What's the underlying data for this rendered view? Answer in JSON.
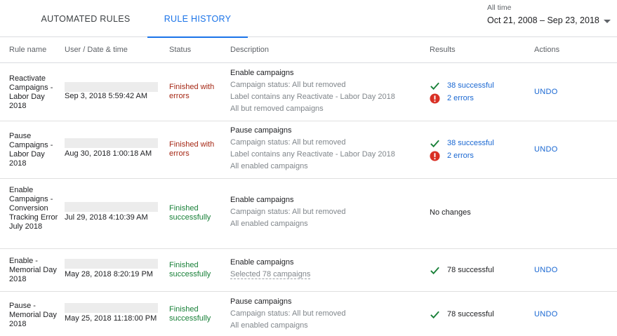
{
  "tabs": {
    "automated_rules": "AUTOMATED RULES",
    "rule_history": "RULE HISTORY"
  },
  "date_range": {
    "label": "All time",
    "value": "Oct 21, 2008 – Sep 23, 2018"
  },
  "columns": {
    "rule_name": "Rule name",
    "user_date": "User / Date & time",
    "status": "Status",
    "description": "Description",
    "results": "Results",
    "actions": "Actions"
  },
  "rows": [
    {
      "name": "Reactivate Campaigns - Labor Day 2018",
      "date": "Sep 3, 2018 5:59:42 AM",
      "status": "Finished with errors",
      "desc_title": "Enable campaigns",
      "desc_lines": [
        "Campaign status: All but removed",
        "Label contains any Reactivate - Labor Day 2018",
        "All but removed campaigns"
      ],
      "result_success": "38 successful",
      "result_errors": "2 errors",
      "action": "UNDO"
    },
    {
      "name": "Pause Campaigns - Labor Day 2018",
      "date": "Aug 30, 2018 1:00:18 AM",
      "status": "Finished with errors",
      "desc_title": "Pause campaigns",
      "desc_lines": [
        "Campaign status: All but removed",
        "Label contains any Reactivate - Labor Day 2018",
        "All enabled campaigns"
      ],
      "result_success": "38 successful",
      "result_errors": "2 errors",
      "action": "UNDO"
    },
    {
      "name": "Enable Campaigns - Conversion Tracking Error July 2018",
      "date": "Jul 29, 2018 4:10:39 AM",
      "status": "Finished successfully",
      "desc_title": "Enable campaigns",
      "desc_lines": [
        "Campaign status: All but removed",
        "All enabled campaigns"
      ],
      "result_plain": "No changes"
    },
    {
      "name": "Enable - Memorial Day 2018",
      "date": "May 28, 2018 8:20:19 PM",
      "status": "Finished successfully",
      "desc_title": "Enable campaigns",
      "desc_selected": "Selected 78 campaigns",
      "result_success": "78 successful",
      "action": "UNDO"
    },
    {
      "name": "Pause - Memorial Day 2018",
      "date": "May 25, 2018 11:18:00 PM",
      "status": "Finished successfully",
      "desc_title": "Pause campaigns",
      "desc_lines": [
        "Campaign status: All but removed",
        "All enabled campaigns"
      ],
      "result_success": "78 successful",
      "action": "UNDO"
    }
  ],
  "colors": {
    "accent": "#1a73e8",
    "link": "#1967d2",
    "error_text": "#a52714",
    "success_text": "#188038",
    "check_icon": "#188038",
    "error_icon": "#d93025"
  },
  "icons": [
    "check-icon",
    "error-icon",
    "chevron-down-icon"
  ]
}
